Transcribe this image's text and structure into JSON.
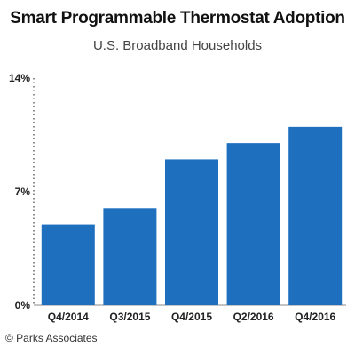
{
  "chart_data": {
    "type": "bar",
    "title": "Smart Programmable Thermostat Adoption",
    "subtitle": "U.S. Broadband Households",
    "categories": [
      "Q4/2014",
      "Q3/2015",
      "Q4/2015",
      "Q2/2016",
      "Q4/2016"
    ],
    "values": [
      5,
      6,
      9,
      10,
      11
    ],
    "y_ticks": [
      0,
      7,
      14
    ],
    "y_tick_labels": [
      "0%",
      "7%",
      "14%"
    ],
    "ylim": [
      0,
      14
    ],
    "grid": false,
    "bar_color": "#1F6FBF",
    "xlabel": "",
    "ylabel": ""
  },
  "credit": "© Parks Associates"
}
